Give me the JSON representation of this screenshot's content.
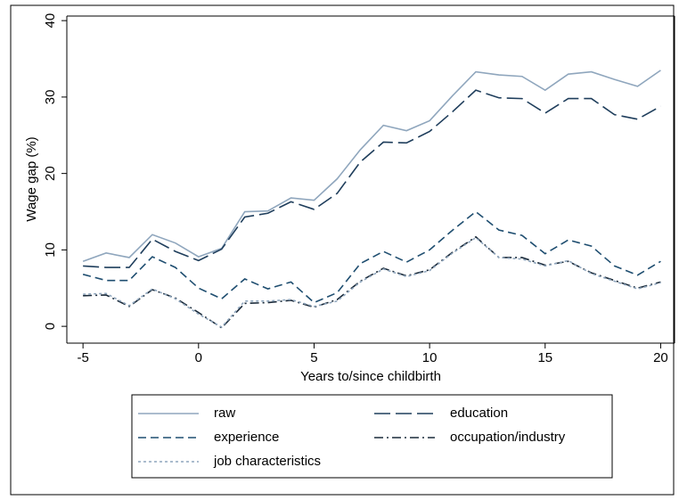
{
  "chart_data": {
    "type": "line",
    "x_label": "Years to/since childbirth",
    "y_label": "Wage gap (%)",
    "x": [
      -5,
      -4,
      -3,
      -2,
      -1,
      0,
      1,
      2,
      3,
      4,
      5,
      6,
      7,
      8,
      9,
      10,
      11,
      12,
      13,
      14,
      15,
      16,
      17,
      18,
      19,
      20
    ],
    "series": [
      {
        "name": "raw",
        "color": "#8fa6bd",
        "dash": "none",
        "values": [
          8.5,
          9.6,
          9.0,
          12.0,
          10.9,
          9.1,
          10.2,
          15.0,
          15.1,
          16.8,
          16.5,
          19.3,
          23.1,
          26.3,
          25.6,
          26.9,
          30.2,
          33.3,
          32.9,
          32.7,
          30.9,
          33.0,
          33.3,
          32.3,
          31.4,
          33.5
        ]
      },
      {
        "name": "education",
        "color": "#1f3e5c",
        "dash": "18 6",
        "values": [
          7.9,
          7.7,
          7.7,
          11.4,
          9.8,
          8.6,
          10.1,
          14.3,
          14.8,
          16.3,
          15.3,
          17.4,
          21.5,
          24.1,
          24.0,
          25.5,
          28.1,
          30.9,
          29.9,
          29.8,
          27.9,
          29.8,
          29.8,
          27.7,
          27.1,
          28.8
        ]
      },
      {
        "name": "experience",
        "color": "#1f4e70",
        "dash": "9 5",
        "values": [
          6.8,
          6.0,
          6.0,
          9.1,
          7.7,
          5.0,
          3.6,
          6.2,
          4.9,
          5.8,
          3.1,
          4.4,
          8.2,
          9.8,
          8.4,
          10.0,
          12.6,
          15.0,
          12.6,
          11.9,
          9.5,
          11.3,
          10.5,
          7.9,
          6.7,
          8.5
        ]
      },
      {
        "name": "occupation/industry",
        "color": "#1a2a3a",
        "dash": "10 4 2 4",
        "values": [
          4.0,
          4.1,
          2.6,
          4.8,
          3.7,
          1.8,
          -0.2,
          3.0,
          3.1,
          3.4,
          2.5,
          3.5,
          5.9,
          7.6,
          6.6,
          7.4,
          9.7,
          11.7,
          9.0,
          9.0,
          8.0,
          8.5,
          7.0,
          6.0,
          5.0,
          5.8
        ]
      },
      {
        "name": "job characteristics",
        "color": "#8fa6bd",
        "dash": "3 3",
        "values": [
          4.2,
          4.3,
          2.7,
          4.9,
          3.6,
          1.6,
          -0.1,
          3.3,
          3.3,
          3.5,
          2.6,
          3.3,
          5.8,
          7.5,
          6.5,
          7.3,
          9.6,
          11.6,
          9.0,
          8.8,
          7.9,
          8.6,
          6.9,
          5.9,
          4.9,
          5.7
        ]
      }
    ],
    "xlim": [
      -5.7,
      20.6
    ],
    "xticks": [
      -5,
      0,
      5,
      10,
      15,
      20
    ],
    "ylim": [
      -2.2,
      40.6
    ],
    "yticks": [
      0,
      10,
      20,
      30,
      40
    ],
    "grid": false
  }
}
